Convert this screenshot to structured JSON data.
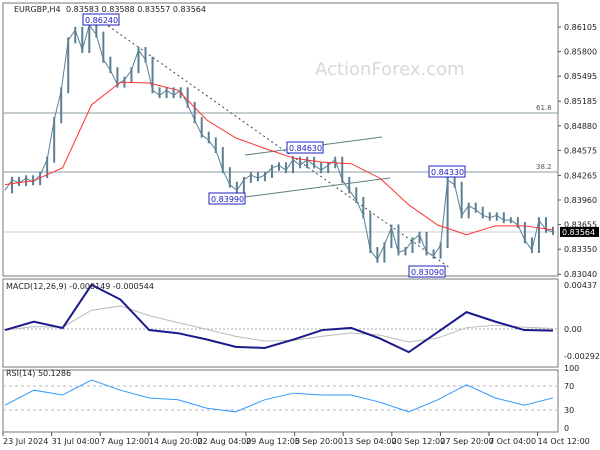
{
  "header": {
    "symbol": "EURGBP,H4",
    "ohlc": "0.83583 0.83588 0.83557 0.83564"
  },
  "watermark": "ActionForex.com",
  "chart_data": [
    {
      "type": "line",
      "title": "EURGBP,H4",
      "price_ticks": [
        "0.86105",
        "0.85800",
        "0.85495",
        "0.85185",
        "0.84880",
        "0.84575",
        "0.84265",
        "0.83960",
        "0.83655",
        "0.83350",
        "0.83040"
      ],
      "ylim": [
        0.8304,
        0.86105
      ],
      "x_tick_labels": [
        "23 Jul 2024",
        "31 Jul 04:00",
        "7 Aug 12:00",
        "14 Aug 20:00",
        "22 Aug 04:00",
        "29 Aug 12:00",
        "5 Sep 20:00",
        "13 Sep 04:00",
        "20 Sep 12:00",
        "27 Sep 20:00",
        "7 Oct 04:00",
        "14 Oct 12:00"
      ],
      "close": [
        0.8408,
        0.8421,
        0.8417,
        0.8423,
        0.8418,
        0.8427,
        0.8446,
        0.8495,
        0.8532,
        0.8594,
        0.8607,
        0.8582,
        0.8613,
        0.8601,
        0.857,
        0.8557,
        0.8539,
        0.8545,
        0.8557,
        0.8582,
        0.857,
        0.8532,
        0.8526,
        0.8532,
        0.8526,
        0.8532,
        0.8514,
        0.8495,
        0.8477,
        0.847,
        0.8458,
        0.8433,
        0.8415,
        0.8408,
        0.8421,
        0.8427,
        0.8423,
        0.8427,
        0.8436,
        0.8439,
        0.8433,
        0.8446,
        0.8439,
        0.8446,
        0.8439,
        0.8433,
        0.8439,
        0.8446,
        0.8421,
        0.8408,
        0.8396,
        0.8377,
        0.8334,
        0.8322,
        0.834,
        0.8362,
        0.8331,
        0.8334,
        0.8346,
        0.8353,
        0.8331,
        0.8327,
        0.834,
        0.8421,
        0.8415,
        0.8377,
        0.8389,
        0.8384,
        0.8377,
        0.8374,
        0.8377,
        0.8371,
        0.8371,
        0.8365,
        0.8346,
        0.8334,
        0.8371,
        0.8359,
        0.83564
      ],
      "moving_average": [
        0.8415,
        0.842,
        0.8436,
        0.8514,
        0.8542,
        0.8541,
        0.8532,
        0.8495,
        0.8473,
        0.846,
        0.8448,
        0.8443,
        0.8441,
        0.8423,
        0.839,
        0.8365,
        0.8353,
        0.8364,
        0.8364,
        0.8359
      ],
      "current_price": "0.83564",
      "annotations": [
        "0.86240",
        "0.84630",
        "0.83990",
        "0.84330",
        "0.83090"
      ],
      "fib_levels": [
        "61.8",
        "38.2"
      ],
      "colors": {
        "price": "#5a7f94",
        "ma": "#ff3030",
        "annotation": "#2020c0",
        "current_price_bg": "#000000"
      }
    },
    {
      "type": "line",
      "title": "MACD(12,26,9) -0.000149 -0.000544",
      "ticks": [
        "0.00437",
        "0.00",
        "-0.002922"
      ],
      "ylim": [
        -0.002922,
        0.00437
      ],
      "macd": [
        -0.0001,
        0.0007,
        0.0001,
        0.0042,
        0.0028,
        -0.0001,
        -0.0004,
        -0.001,
        -0.0017,
        -0.0018,
        -0.001,
        -0.0001,
        0.0001,
        -0.0009,
        -0.0022,
        -0.0003,
        0.0016,
        0.0007,
        -0.0001,
        -0.000149
      ],
      "colors": {
        "macd": "#1a1a8c",
        "signal": "#bbbbbb"
      }
    },
    {
      "type": "line",
      "title": "RSI(14) 50.1286",
      "ticks": [
        "100",
        "70",
        "30",
        "0"
      ],
      "ylim": [
        0,
        100
      ],
      "levels": [
        70,
        30
      ],
      "rsi": [
        38,
        63,
        55,
        80,
        63,
        50,
        47,
        33,
        27,
        47,
        58,
        55,
        55,
        43,
        27,
        47,
        72,
        50,
        38,
        50.1286
      ],
      "colors": {
        "rsi": "#3399ff"
      }
    }
  ]
}
